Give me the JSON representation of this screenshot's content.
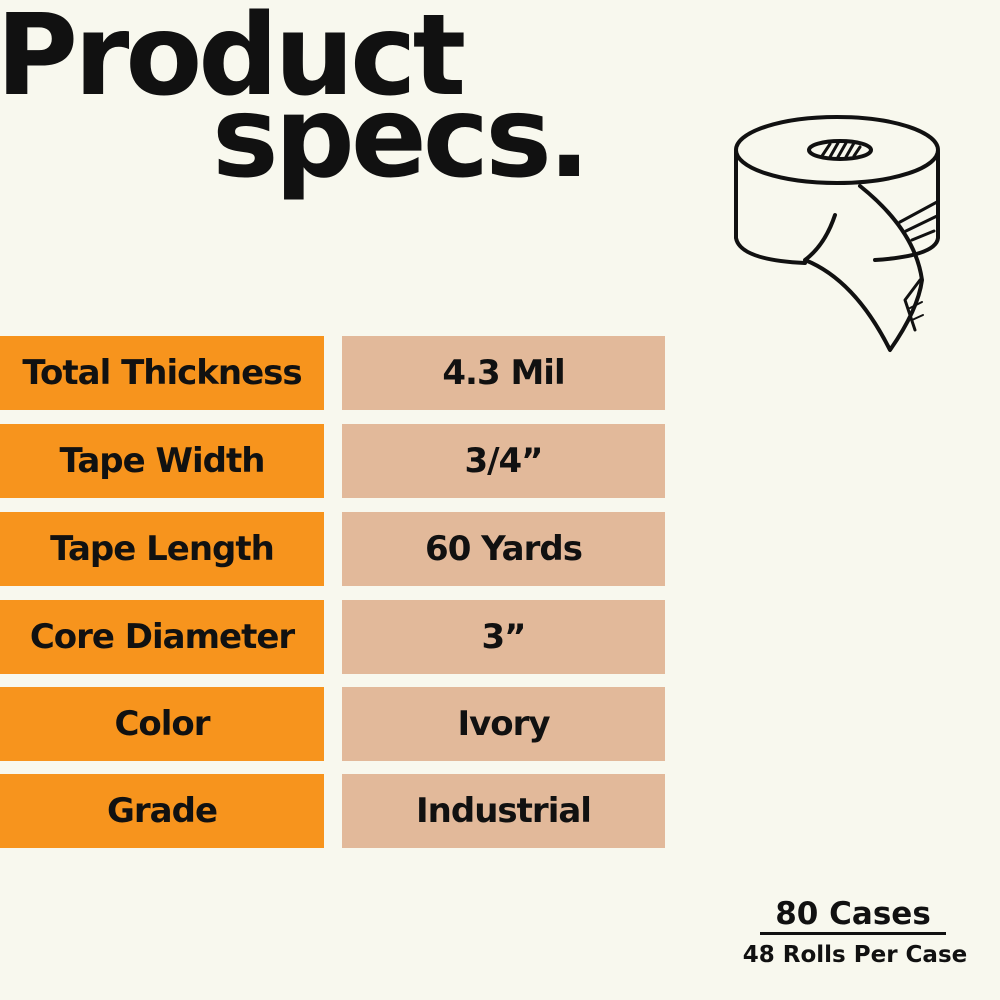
{
  "title": {
    "line1": "Product",
    "line2": "specs."
  },
  "specs": [
    {
      "label": "Total Thickness",
      "value": "4.3 Mil"
    },
    {
      "label": "Tape Width",
      "value": "3/4”"
    },
    {
      "label": "Tape Length",
      "value": "60 Yards"
    },
    {
      "label": "Core Diameter",
      "value": "3”"
    },
    {
      "label": "Color",
      "value": "Ivory"
    },
    {
      "label": "Grade",
      "value": "Industrial"
    }
  ],
  "footer": {
    "cases": "80 Cases",
    "rolls_per_case": "48 Rolls Per Case"
  },
  "icon": "tape-roll-icon",
  "colors": {
    "background": "#f8f8ee",
    "label_fill": "#f7941d",
    "value_fill": "#e2b99a",
    "text": "#111111"
  }
}
